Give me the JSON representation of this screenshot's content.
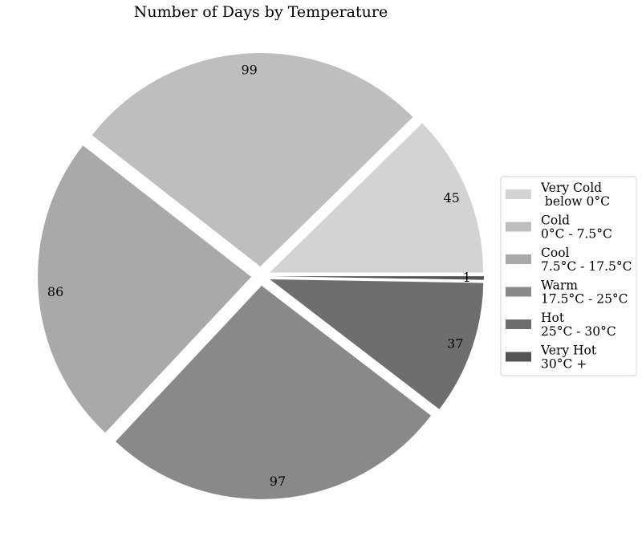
{
  "chart_data": {
    "type": "pie",
    "title": "Number of Days by Temperature",
    "start_angle_deg": 0,
    "direction": "counterclockwise",
    "legend_position": "right",
    "slices": [
      {
        "label": "Very Cold\n below 0°C",
        "value": 45,
        "color": "#d3d3d3",
        "exploded": true
      },
      {
        "label": "Cold\n0°C - 7.5°C",
        "value": 99,
        "color": "#bebebe",
        "exploded": true
      },
      {
        "label": "Cool\n7.5°C - 17.5°C",
        "value": 86,
        "color": "#a9a9a9",
        "exploded": true
      },
      {
        "label": "Warm\n17.5°C - 25°C",
        "value": 97,
        "color": "#898989",
        "exploded": true
      },
      {
        "label": "Hot\n25°C - 30°C",
        "value": 37,
        "color": "#6e6e6e",
        "exploded": true
      },
      {
        "label": "Very Hot\n30°C +",
        "value": 1,
        "color": "#545454",
        "exploded": true
      }
    ]
  }
}
